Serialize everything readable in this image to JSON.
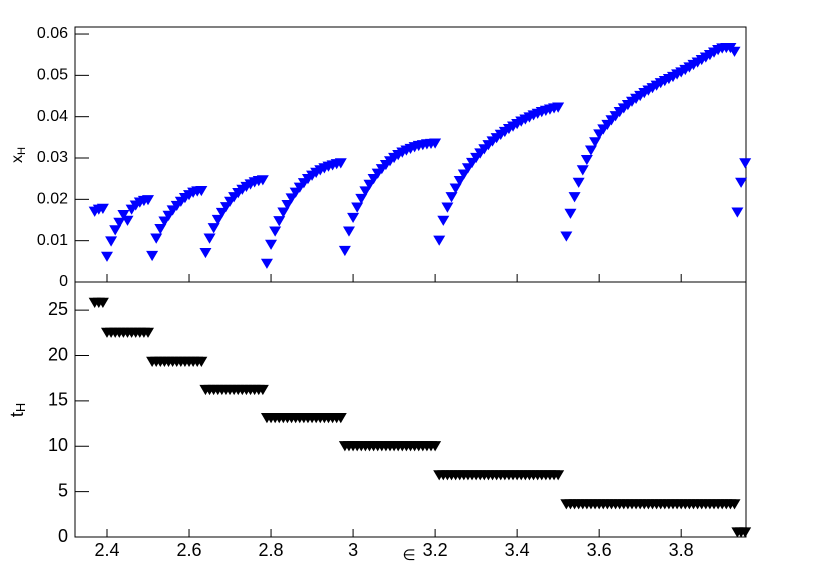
{
  "chart_data": [
    {
      "type": "scatter",
      "ylabel": "x_H",
      "color": "#0000ff",
      "xlim": [
        2.322,
        3.958
      ],
      "ylim": [
        0,
        0.0617
      ],
      "yticks": [
        0,
        0.01,
        0.02,
        0.03,
        0.04,
        0.05,
        0.06
      ],
      "x": [
        2.37,
        2.38,
        2.39,
        2.4,
        2.41,
        2.42,
        2.43,
        2.44,
        2.45,
        2.46,
        2.47,
        2.48,
        2.49,
        2.5,
        2.51,
        2.52,
        2.53,
        2.54,
        2.55,
        2.56,
        2.57,
        2.58,
        2.59,
        2.6,
        2.61,
        2.62,
        2.63,
        2.64,
        2.65,
        2.66,
        2.67,
        2.68,
        2.69,
        2.7,
        2.71,
        2.72,
        2.73,
        2.74,
        2.75,
        2.76,
        2.77,
        2.78,
        2.79,
        2.8,
        2.81,
        2.82,
        2.83,
        2.84,
        2.85,
        2.86,
        2.87,
        2.88,
        2.89,
        2.9,
        2.91,
        2.92,
        2.93,
        2.94,
        2.95,
        2.96,
        2.97,
        2.98,
        2.99,
        3.0,
        3.01,
        3.02,
        3.03,
        3.04,
        3.05,
        3.06,
        3.07,
        3.08,
        3.09,
        3.1,
        3.11,
        3.12,
        3.13,
        3.14,
        3.15,
        3.16,
        3.17,
        3.18,
        3.19,
        3.2,
        3.21,
        3.22,
        3.23,
        3.24,
        3.25,
        3.26,
        3.27,
        3.28,
        3.29,
        3.3,
        3.31,
        3.32,
        3.33,
        3.34,
        3.35,
        3.36,
        3.37,
        3.38,
        3.39,
        3.4,
        3.41,
        3.42,
        3.43,
        3.44,
        3.45,
        3.46,
        3.47,
        3.48,
        3.49,
        3.5,
        3.52,
        3.53,
        3.54,
        3.55,
        3.56,
        3.57,
        3.58,
        3.59,
        3.6,
        3.61,
        3.62,
        3.63,
        3.64,
        3.65,
        3.66,
        3.67,
        3.68,
        3.69,
        3.7,
        3.71,
        3.72,
        3.73,
        3.74,
        3.75,
        3.76,
        3.77,
        3.78,
        3.79,
        3.8,
        3.81,
        3.82,
        3.83,
        3.84,
        3.85,
        3.86,
        3.87,
        3.88,
        3.89,
        3.9,
        3.91,
        3.92,
        3.93,
        3.937,
        3.946,
        3.956
      ],
      "values": [
        0.017,
        0.0175,
        0.0177,
        0.0061,
        0.0098,
        0.0125,
        0.0143,
        0.0162,
        0.0148,
        0.0175,
        0.0185,
        0.0192,
        0.0196,
        0.0198,
        0.0063,
        0.0105,
        0.0128,
        0.0146,
        0.016,
        0.0173,
        0.0184,
        0.0194,
        0.0203,
        0.021,
        0.0216,
        0.0219,
        0.022,
        0.007,
        0.0105,
        0.013,
        0.015,
        0.0167,
        0.0181,
        0.0194,
        0.0205,
        0.0215,
        0.0223,
        0.023,
        0.0236,
        0.0241,
        0.0244,
        0.0246,
        0.0044,
        0.009,
        0.0122,
        0.0147,
        0.0168,
        0.0186,
        0.0202,
        0.0216,
        0.0228,
        0.0239,
        0.0249,
        0.0257,
        0.0264,
        0.027,
        0.0275,
        0.0279,
        0.0282,
        0.0285,
        0.0287,
        0.0075,
        0.0122,
        0.0155,
        0.018,
        0.0201,
        0.0219,
        0.0235,
        0.0249,
        0.0262,
        0.0273,
        0.0283,
        0.0292,
        0.03,
        0.0307,
        0.0313,
        0.0318,
        0.0322,
        0.0326,
        0.0329,
        0.0331,
        0.0333,
        0.0334,
        0.0335,
        0.01,
        0.0148,
        0.018,
        0.0205,
        0.0226,
        0.0244,
        0.026,
        0.0275,
        0.0288,
        0.03,
        0.0311,
        0.0321,
        0.0331,
        0.034,
        0.0348,
        0.0356,
        0.0363,
        0.037,
        0.0376,
        0.0382,
        0.0388,
        0.0393,
        0.0398,
        0.0403,
        0.0407,
        0.0411,
        0.0414,
        0.0417,
        0.042,
        0.0422,
        0.011,
        0.0165,
        0.0205,
        0.024,
        0.027,
        0.0295,
        0.0318,
        0.0338,
        0.0357,
        0.0369,
        0.038,
        0.0391,
        0.0401,
        0.0411,
        0.042,
        0.0428,
        0.0436,
        0.0443,
        0.045,
        0.0457,
        0.0463,
        0.0469,
        0.0475,
        0.0481,
        0.0486,
        0.0491,
        0.0496,
        0.0502,
        0.0507,
        0.0513,
        0.0519,
        0.0525,
        0.0531,
        0.0537,
        0.0543,
        0.0549,
        0.0555,
        0.0561,
        0.0565,
        0.0566,
        0.0566,
        0.0557,
        0.0168,
        0.024,
        0.0287
      ]
    },
    {
      "type": "scatter",
      "ylabel": "t_H",
      "xlabel": "∈",
      "color": "#000000",
      "xlim": [
        2.322,
        3.958
      ],
      "xticks": [
        2.4,
        2.6,
        2.8,
        3,
        3.2,
        3.4,
        3.6,
        3.8
      ],
      "ylim": [
        0,
        28.1
      ],
      "yticks": [
        0,
        5,
        10,
        15,
        20,
        25
      ],
      "x": [
        2.37,
        2.38,
        2.39,
        2.4,
        2.41,
        2.42,
        2.43,
        2.44,
        2.45,
        2.46,
        2.47,
        2.48,
        2.49,
        2.5,
        2.51,
        2.52,
        2.53,
        2.54,
        2.55,
        2.56,
        2.57,
        2.58,
        2.59,
        2.6,
        2.61,
        2.62,
        2.63,
        2.64,
        2.65,
        2.66,
        2.67,
        2.68,
        2.69,
        2.7,
        2.71,
        2.72,
        2.73,
        2.74,
        2.75,
        2.76,
        2.77,
        2.78,
        2.79,
        2.8,
        2.81,
        2.82,
        2.83,
        2.84,
        2.85,
        2.86,
        2.87,
        2.88,
        2.89,
        2.9,
        2.91,
        2.92,
        2.93,
        2.94,
        2.95,
        2.96,
        2.97,
        2.98,
        2.99,
        3.0,
        3.01,
        3.02,
        3.03,
        3.04,
        3.05,
        3.06,
        3.07,
        3.08,
        3.09,
        3.1,
        3.11,
        3.12,
        3.13,
        3.14,
        3.15,
        3.16,
        3.17,
        3.18,
        3.19,
        3.2,
        3.21,
        3.22,
        3.23,
        3.24,
        3.25,
        3.26,
        3.27,
        3.28,
        3.29,
        3.3,
        3.31,
        3.32,
        3.33,
        3.34,
        3.35,
        3.36,
        3.37,
        3.38,
        3.39,
        3.4,
        3.41,
        3.42,
        3.43,
        3.44,
        3.45,
        3.46,
        3.47,
        3.48,
        3.49,
        3.5,
        3.52,
        3.53,
        3.54,
        3.55,
        3.56,
        3.57,
        3.58,
        3.59,
        3.6,
        3.61,
        3.62,
        3.63,
        3.64,
        3.65,
        3.66,
        3.67,
        3.68,
        3.69,
        3.7,
        3.71,
        3.72,
        3.73,
        3.74,
        3.75,
        3.76,
        3.77,
        3.78,
        3.79,
        3.8,
        3.81,
        3.82,
        3.83,
        3.84,
        3.85,
        3.86,
        3.87,
        3.88,
        3.89,
        3.9,
        3.91,
        3.92,
        3.93,
        3.937,
        3.946,
        3.956
      ],
      "values": [
        25.8,
        25.8,
        25.8,
        22.5,
        22.5,
        22.5,
        22.5,
        22.5,
        22.5,
        22.5,
        22.5,
        22.5,
        22.5,
        22.5,
        19.3,
        19.3,
        19.3,
        19.3,
        19.3,
        19.3,
        19.3,
        19.3,
        19.3,
        19.3,
        19.3,
        19.3,
        19.3,
        16.2,
        16.2,
        16.2,
        16.2,
        16.2,
        16.2,
        16.2,
        16.2,
        16.2,
        16.2,
        16.2,
        16.2,
        16.2,
        16.2,
        16.2,
        13.1,
        13.1,
        13.1,
        13.1,
        13.1,
        13.1,
        13.1,
        13.1,
        13.1,
        13.1,
        13.1,
        13.1,
        13.1,
        13.1,
        13.1,
        13.1,
        13.1,
        13.1,
        13.1,
        10.0,
        10.0,
        10.0,
        10.0,
        10.0,
        10.0,
        10.0,
        10.0,
        10.0,
        10.0,
        10.0,
        10.0,
        10.0,
        10.0,
        10.0,
        10.0,
        10.0,
        10.0,
        10.0,
        10.0,
        10.0,
        10.0,
        10.0,
        6.8,
        6.8,
        6.8,
        6.8,
        6.8,
        6.8,
        6.8,
        6.8,
        6.8,
        6.8,
        6.8,
        6.8,
        6.8,
        6.8,
        6.8,
        6.8,
        6.8,
        6.8,
        6.8,
        6.8,
        6.8,
        6.8,
        6.8,
        6.8,
        6.8,
        6.8,
        6.8,
        6.8,
        6.8,
        6.8,
        3.6,
        3.6,
        3.6,
        3.6,
        3.6,
        3.6,
        3.6,
        3.6,
        3.6,
        3.6,
        3.6,
        3.6,
        3.6,
        3.6,
        3.6,
        3.6,
        3.6,
        3.6,
        3.6,
        3.6,
        3.6,
        3.6,
        3.6,
        3.6,
        3.6,
        3.6,
        3.6,
        3.6,
        3.6,
        3.6,
        3.6,
        3.6,
        3.6,
        3.6,
        3.6,
        3.6,
        3.6,
        3.6,
        3.6,
        3.6,
        3.6,
        3.6,
        0.5,
        0.5,
        0.5
      ]
    }
  ]
}
